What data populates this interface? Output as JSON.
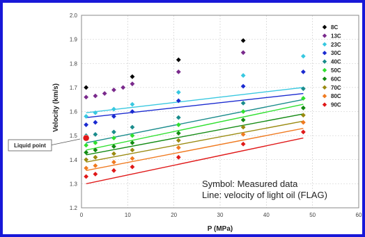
{
  "chart_data": {
    "type": "scatter",
    "title": "",
    "xlabel": "P (MPa)",
    "ylabel": "Velocity (km/s)",
    "xlim": [
      0,
      60
    ],
    "ylim": [
      1.2,
      2.0
    ],
    "xticks": [
      "0",
      "10",
      "20",
      "30",
      "40",
      "50",
      "60"
    ],
    "yticks": [
      "1.2",
      "1.3",
      "1.4",
      "1.5",
      "1.6",
      "1.7",
      "1.8",
      "1.9",
      "2.0"
    ],
    "grid": "on",
    "legend_placement": "right",
    "annotations": {
      "liquid_point": "Liquid point",
      "note_line1": "Symbol: Measured data",
      "note_line2": "Line: velocity of light oil (FLAG)"
    },
    "liquid_point": {
      "x": 1,
      "y": 1.49
    },
    "series": [
      {
        "name": "8C",
        "color": "#000000",
        "points": [
          [
            1,
            1.7
          ],
          [
            11,
            1.745
          ],
          [
            21,
            1.815
          ],
          [
            35,
            1.895
          ]
        ],
        "line": null
      },
      {
        "name": "13C",
        "color": "#7a2a8c",
        "points": [
          [
            1,
            1.66
          ],
          [
            3,
            1.665
          ],
          [
            5,
            1.675
          ],
          [
            7,
            1.69
          ],
          [
            9,
            1.7
          ],
          [
            11,
            1.715
          ],
          [
            21,
            1.765
          ],
          [
            35,
            1.845
          ]
        ],
        "line": null
      },
      {
        "name": "23C",
        "color": "#38c8e0",
        "points": [
          [
            1,
            1.58
          ],
          [
            3,
            1.595
          ],
          [
            7,
            1.61
          ],
          [
            11,
            1.63
          ],
          [
            21,
            1.68
          ],
          [
            35,
            1.75
          ],
          [
            48,
            1.83
          ]
        ],
        "line": [
          [
            1,
            1.595
          ],
          [
            48,
            1.7
          ]
        ]
      },
      {
        "name": "30C",
        "color": "#1a2ad0",
        "points": [
          [
            1,
            1.545
          ],
          [
            3,
            1.555
          ],
          [
            7,
            1.58
          ],
          [
            11,
            1.6
          ],
          [
            21,
            1.645
          ],
          [
            35,
            1.705
          ],
          [
            48,
            1.765
          ]
        ],
        "line": [
          [
            1,
            1.575
          ],
          [
            48,
            1.675
          ]
        ]
      },
      {
        "name": "40C",
        "color": "#1a8c8c",
        "points": [
          [
            1,
            1.5
          ],
          [
            3,
            1.505
          ],
          [
            7,
            1.515
          ],
          [
            11,
            1.535
          ],
          [
            21,
            1.575
          ],
          [
            35,
            1.635
          ],
          [
            48,
            1.695
          ]
        ],
        "line": [
          [
            1,
            1.47
          ],
          [
            48,
            1.65
          ]
        ]
      },
      {
        "name": "50C",
        "color": "#30e030",
        "points": [
          [
            1,
            1.46
          ],
          [
            3,
            1.47
          ],
          [
            7,
            1.49
          ],
          [
            11,
            1.5
          ],
          [
            21,
            1.545
          ],
          [
            35,
            1.6
          ],
          [
            48,
            1.655
          ]
        ],
        "line": [
          [
            1,
            1.44
          ],
          [
            48,
            1.63
          ]
        ]
      },
      {
        "name": "60C",
        "color": "#128a12",
        "points": [
          [
            1,
            1.43
          ],
          [
            3,
            1.44
          ],
          [
            7,
            1.455
          ],
          [
            11,
            1.47
          ],
          [
            21,
            1.51
          ],
          [
            35,
            1.565
          ],
          [
            48,
            1.615
          ]
        ],
        "line": [
          [
            1,
            1.42
          ],
          [
            48,
            1.59
          ]
        ]
      },
      {
        "name": "70C",
        "color": "#9a8a10",
        "points": [
          [
            1,
            1.4
          ],
          [
            3,
            1.41
          ],
          [
            7,
            1.425
          ],
          [
            11,
            1.44
          ],
          [
            21,
            1.48
          ],
          [
            35,
            1.535
          ],
          [
            48,
            1.585
          ]
        ],
        "line": [
          [
            1,
            1.39
          ],
          [
            48,
            1.56
          ]
        ]
      },
      {
        "name": "80C",
        "color": "#f07a20",
        "points": [
          [
            1,
            1.365
          ],
          [
            3,
            1.375
          ],
          [
            7,
            1.39
          ],
          [
            11,
            1.405
          ],
          [
            21,
            1.45
          ],
          [
            35,
            1.505
          ],
          [
            48,
            1.555
          ]
        ],
        "line": [
          [
            1,
            1.355
          ],
          [
            48,
            1.53
          ]
        ]
      },
      {
        "name": "90C",
        "color": "#e01818",
        "points": [
          [
            1,
            1.33
          ],
          [
            3,
            1.34
          ],
          [
            7,
            1.355
          ],
          [
            11,
            1.37
          ],
          [
            21,
            1.41
          ],
          [
            35,
            1.465
          ],
          [
            48,
            1.515
          ]
        ],
        "line": [
          [
            1,
            1.3
          ],
          [
            48,
            1.49
          ]
        ]
      }
    ]
  }
}
